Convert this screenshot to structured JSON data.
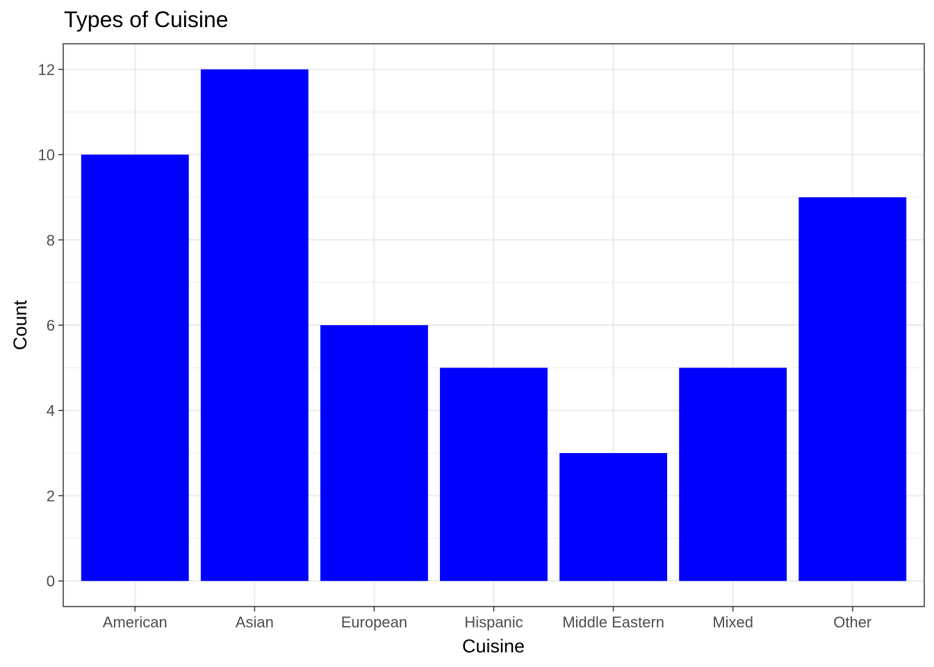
{
  "chart_data": {
    "type": "bar",
    "title": "Types of Cuisine",
    "xlabel": "Cuisine",
    "ylabel": "Count",
    "categories": [
      "American",
      "Asian",
      "European",
      "Hispanic",
      "Middle Eastern",
      "Mixed",
      "Other"
    ],
    "values": [
      10,
      12,
      6,
      5,
      3,
      5,
      9
    ],
    "ylim": [
      -0.6,
      12.6
    ],
    "yticks": [
      0,
      2,
      4,
      6,
      8,
      10,
      12
    ],
    "ytick_labels": [
      "0",
      "2",
      "4",
      "6",
      "8",
      "10",
      "12"
    ],
    "bar_color": "#0000ff",
    "grid": true,
    "grid_color": "#ebebeb",
    "panel_border_color": "#333333",
    "legend": "none"
  }
}
